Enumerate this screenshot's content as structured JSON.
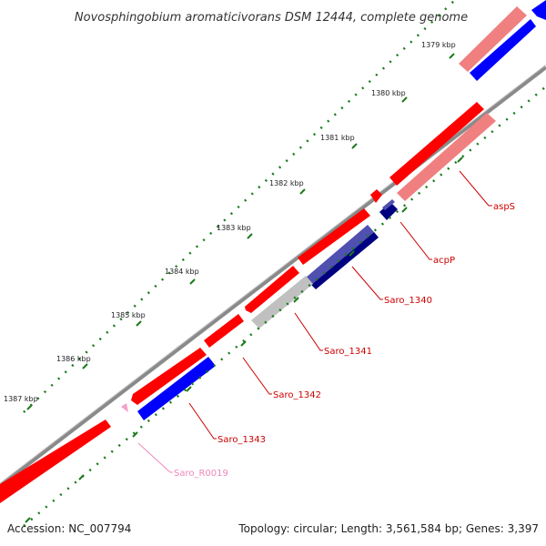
{
  "header": {
    "title": "Novosphingobium aromaticivorans DSM 12444, complete genome"
  },
  "footer": {
    "accession": "Accession: NC_007794",
    "summary": "Topology: circular; Length: 3,561,584 bp; Genes: 3,397"
  },
  "ticks": [
    {
      "label": "1379 kbp"
    },
    {
      "label": "1380 kbp"
    },
    {
      "label": "1381 kbp"
    },
    {
      "label": "1382 kbp"
    },
    {
      "label": "1383 kbp"
    },
    {
      "label": "1384 kbp"
    },
    {
      "label": "1385 kbp"
    },
    {
      "label": "1386 kbp"
    },
    {
      "label": "1387 kbp"
    }
  ],
  "genes": [
    {
      "name": "aspS",
      "label_color": "#cc0000"
    },
    {
      "name": "acpP",
      "label_color": "#cc0000"
    },
    {
      "name": "Saro_1340",
      "label_color": "#cc0000"
    },
    {
      "name": "Saro_1341",
      "label_color": "#cc0000"
    },
    {
      "name": "Saro_1342",
      "label_color": "#cc0000"
    },
    {
      "name": "Saro_1343",
      "label_color": "#cc0000"
    },
    {
      "name": "Saro_R0019",
      "label_color": "#ee88bb"
    }
  ],
  "colors": {
    "backbone": "#8a8a8a",
    "forward_strand": "#ff0000",
    "forward_light": "#f08080",
    "reverse_strand": "#0000ff",
    "reverse_dark": "#000080",
    "reverse_mid": "#5050b0",
    "grey_feature": "#c0c0c0",
    "rna_feature": "#f5a0c8",
    "tick_marks": "#1a7a1a"
  }
}
